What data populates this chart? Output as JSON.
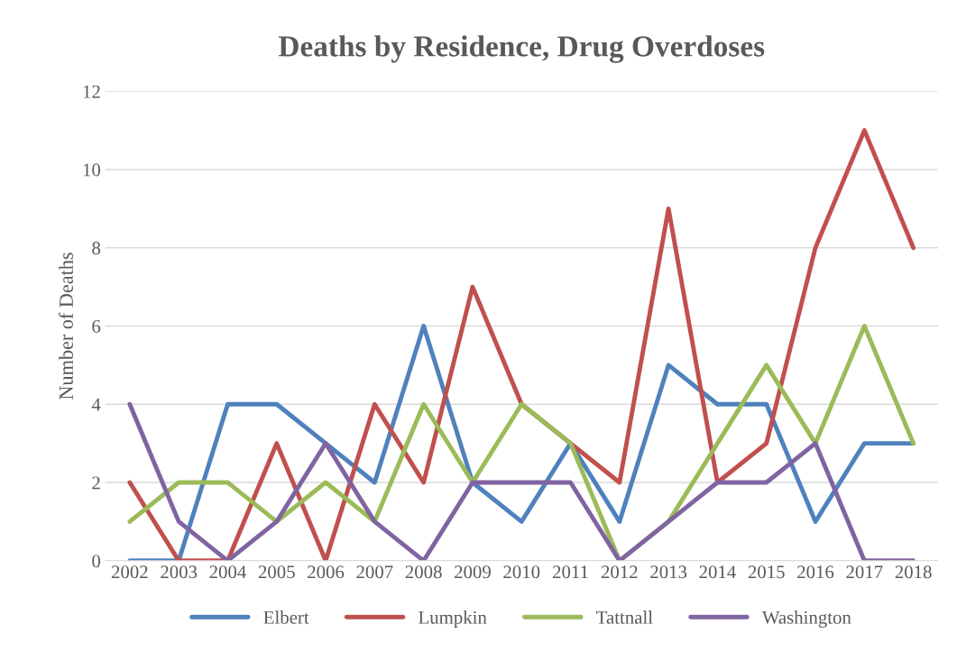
{
  "chart_data": {
    "type": "line",
    "title": "Deaths by Residence, Drug Overdoses",
    "ylabel": "Number of Deaths",
    "categories": [
      "2002",
      "2003",
      "2004",
      "2005",
      "2006",
      "2007",
      "2008",
      "2009",
      "2010",
      "2011",
      "2012",
      "2013",
      "2014",
      "2015",
      "2016",
      "2017",
      "2018"
    ],
    "series": [
      {
        "name": "Elbert",
        "color": "#4f81bd",
        "values": [
          0,
          0,
          4,
          4,
          3,
          2,
          6,
          2,
          1,
          3,
          1,
          5,
          4,
          4,
          1,
          3,
          3
        ]
      },
      {
        "name": "Lumpkin",
        "color": "#c0504d",
        "values": [
          2,
          0,
          0,
          3,
          0,
          4,
          2,
          7,
          4,
          3,
          2,
          9,
          2,
          3,
          8,
          11,
          8
        ]
      },
      {
        "name": "Tattnall",
        "color": "#9bbb59",
        "values": [
          1,
          2,
          2,
          1,
          2,
          1,
          4,
          2,
          4,
          3,
          0,
          1,
          3,
          5,
          3,
          6,
          3
        ]
      },
      {
        "name": "Washington",
        "color": "#8064a2",
        "values": [
          4,
          1,
          0,
          1,
          3,
          1,
          0,
          2,
          2,
          2,
          0,
          1,
          2,
          2,
          3,
          0,
          0
        ]
      }
    ],
    "ylim": [
      0,
      12
    ],
    "yticks": [
      0,
      2,
      4,
      6,
      8,
      10,
      12
    ],
    "grid": "y",
    "legend": "bottom",
    "marker": "none",
    "line_style": "solid"
  }
}
